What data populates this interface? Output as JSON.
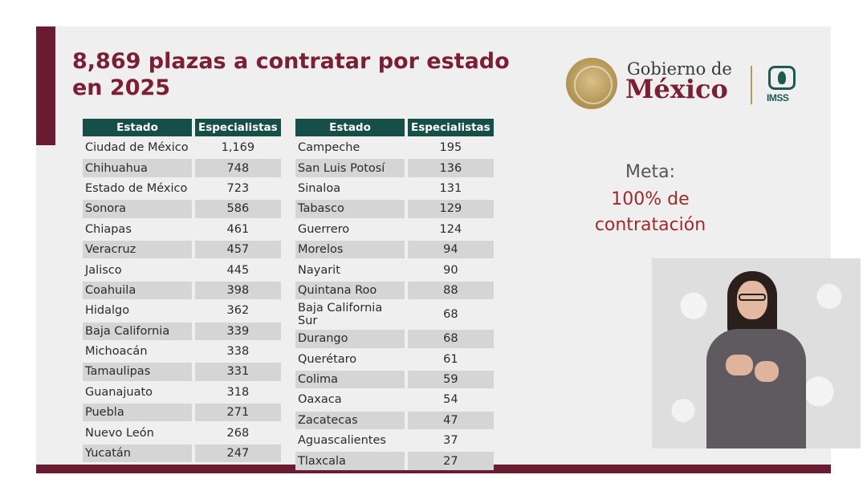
{
  "title_line1": "8,869 plazas a contratar por estado",
  "title_line2": "en 2025",
  "logo": {
    "line1": "Gobierno de",
    "line2": "México",
    "imss": "IMSS"
  },
  "meta": {
    "label": "Meta:",
    "value_line1": "100% de",
    "value_line2": "contratación"
  },
  "table_left": {
    "headers": [
      "Estado",
      "Especialistas"
    ],
    "rows": [
      [
        "Ciudad de México",
        "1,169"
      ],
      [
        "Chihuahua",
        "748"
      ],
      [
        "Estado de México",
        "723"
      ],
      [
        "Sonora",
        "586"
      ],
      [
        "Chiapas",
        "461"
      ],
      [
        "Veracruz",
        "457"
      ],
      [
        "Jalisco",
        "445"
      ],
      [
        "Coahuila",
        "398"
      ],
      [
        "Hidalgo",
        "362"
      ],
      [
        "Baja California",
        "339"
      ],
      [
        "Michoacán",
        "338"
      ],
      [
        "Tamaulipas",
        "331"
      ],
      [
        "Guanajuato",
        "318"
      ],
      [
        "Puebla",
        "271"
      ],
      [
        "Nuevo León",
        "268"
      ],
      [
        "Yucatán",
        "247"
      ]
    ]
  },
  "table_right": {
    "headers": [
      "Estado",
      "Especialistas"
    ],
    "rows": [
      [
        "Campeche",
        "195"
      ],
      [
        "San Luis Potosí",
        "136"
      ],
      [
        "Sinaloa",
        "131"
      ],
      [
        "Tabasco",
        "129"
      ],
      [
        "Guerrero",
        "124"
      ],
      [
        "Morelos",
        "94"
      ],
      [
        "Nayarit",
        "90"
      ],
      [
        "Quintana Roo",
        "88"
      ],
      [
        "Baja California Sur",
        "68"
      ],
      [
        "Durango",
        "68"
      ],
      [
        "Querétaro",
        "61"
      ],
      [
        "Colima",
        "59"
      ],
      [
        "Oaxaca",
        "54"
      ],
      [
        "Zacatecas",
        "47"
      ],
      [
        "Aguascalientes",
        "37"
      ],
      [
        "Tlaxcala",
        "27"
      ]
    ]
  },
  "colors": {
    "guinda": "#691c32",
    "header_green": "#164e48",
    "meta_red": "#9e2a2b"
  }
}
